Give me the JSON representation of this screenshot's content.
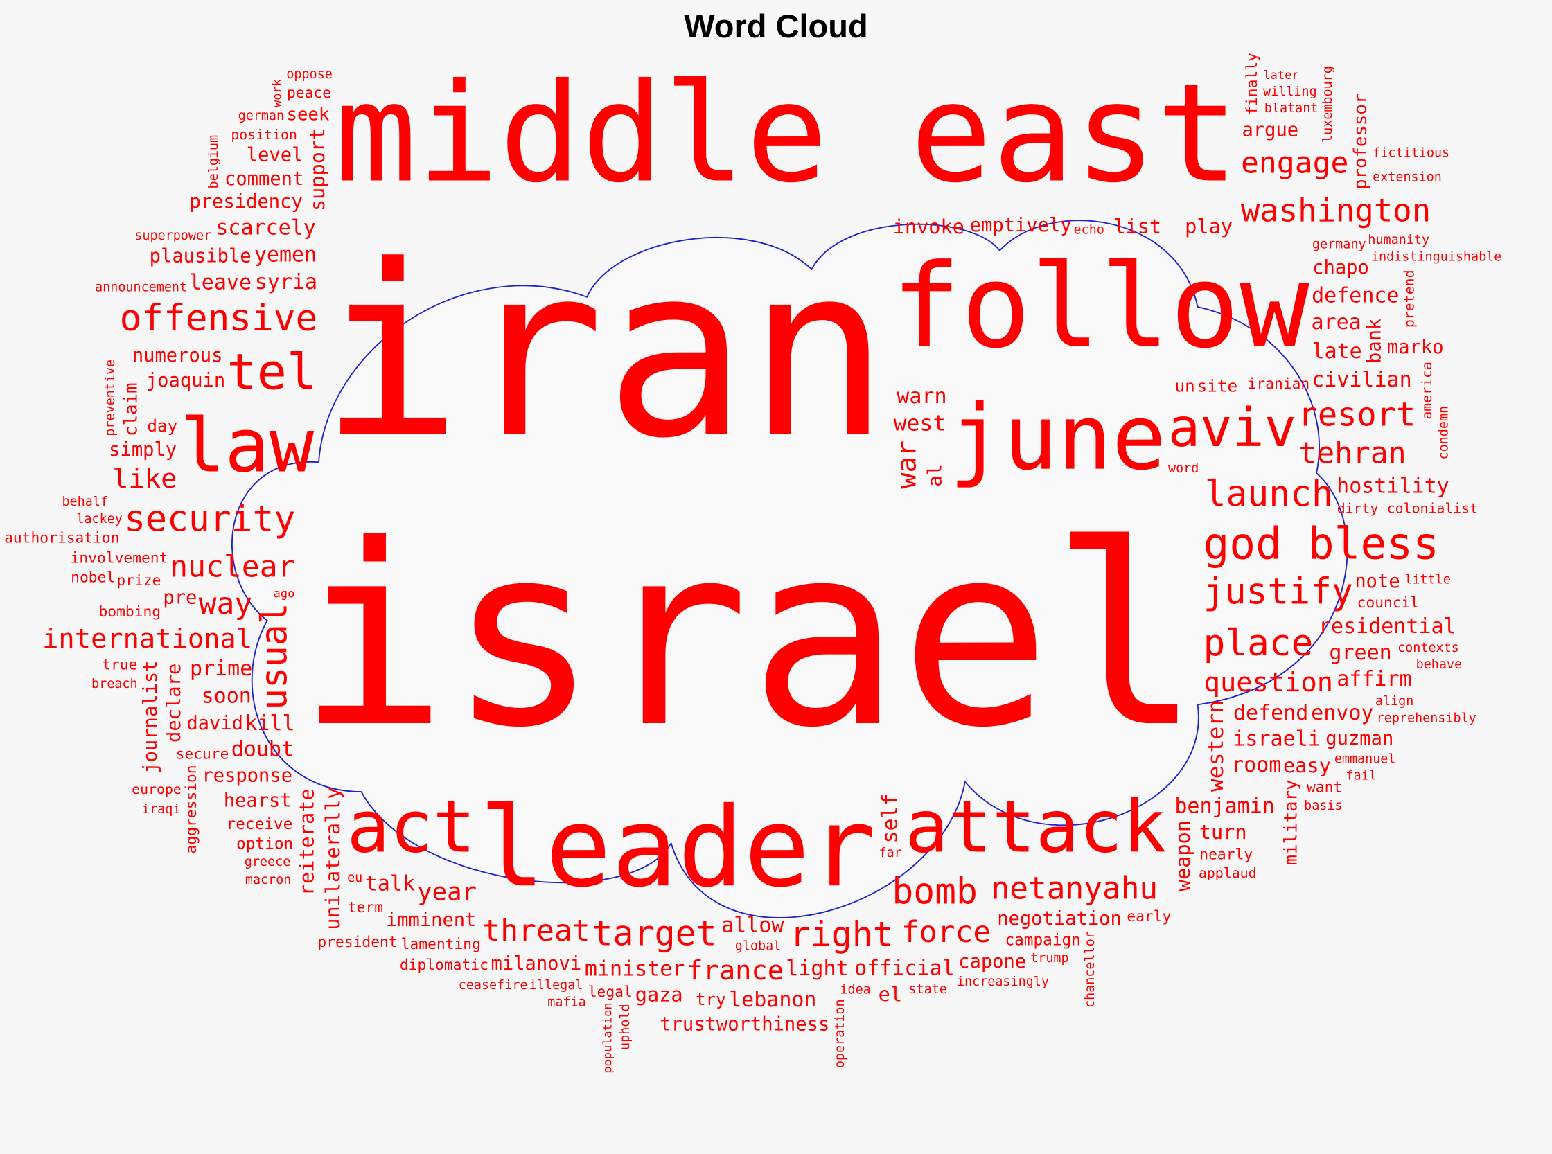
{
  "chart_data": {
    "type": "wordcloud",
    "title": "Word Cloud",
    "colors": {
      "words": "#ff0000",
      "outline": "#2222cc",
      "background": "#f7f7f7",
      "cloud_fill": "#f9f9f9"
    },
    "words": [
      {
        "text": "israel",
        "weight": 1.0
      },
      {
        "text": "iran",
        "weight": 0.945
      },
      {
        "text": "middle east",
        "weight": 0.545
      },
      {
        "text": "follow",
        "weight": 0.462
      },
      {
        "text": "leader",
        "weight": 0.439
      },
      {
        "text": "attack",
        "weight": 0.289
      },
      {
        "text": "june",
        "weight": 0.36
      },
      {
        "text": "law",
        "weight": 0.296
      },
      {
        "text": "act",
        "weight": 0.285
      },
      {
        "text": "aviv",
        "weight": 0.213
      },
      {
        "text": "tel",
        "weight": 0.198
      },
      {
        "text": "god bless",
        "weight": 0.174
      },
      {
        "text": "justify",
        "weight": 0.142
      },
      {
        "text": "place",
        "weight": 0.146
      },
      {
        "text": "launch",
        "weight": 0.142
      },
      {
        "text": "washington",
        "weight": 0.126
      },
      {
        "text": "engage",
        "weight": 0.119
      },
      {
        "text": "offensive",
        "weight": 0.146
      },
      {
        "text": "security",
        "weight": 0.142
      },
      {
        "text": "nuclear",
        "weight": 0.119
      },
      {
        "text": "international",
        "weight": 0.107
      },
      {
        "text": "target",
        "weight": 0.138
      },
      {
        "text": "threat",
        "weight": 0.119
      },
      {
        "text": "france",
        "weight": 0.107
      },
      {
        "text": "force",
        "weight": 0.119
      },
      {
        "text": "bomb",
        "weight": 0.142
      },
      {
        "text": "netanyahu",
        "weight": 0.123
      },
      {
        "text": "right",
        "weight": 0.138
      },
      {
        "text": "resort",
        "weight": 0.13
      },
      {
        "text": "question",
        "weight": 0.107
      },
      {
        "text": "tehran",
        "weight": 0.119
      },
      {
        "text": "way",
        "weight": 0.119
      },
      {
        "text": "like",
        "weight": 0.107
      },
      {
        "text": "year",
        "weight": 0.099
      },
      {
        "text": "usual",
        "weight": 0.142
      },
      {
        "text": "civilian",
        "weight": 0.083
      },
      {
        "text": "hostility",
        "weight": 0.083
      },
      {
        "text": "residential",
        "weight": 0.083
      },
      {
        "text": "defend",
        "weight": 0.083
      },
      {
        "text": "israeli",
        "weight": 0.083
      },
      {
        "text": "west",
        "weight": 0.087
      },
      {
        "text": "note",
        "weight": 0.075
      },
      {
        "text": "iranian",
        "weight": 0.059
      },
      {
        "text": "warn",
        "weight": 0.083
      },
      {
        "text": "little",
        "weight": 0.051
      },
      {
        "text": "contexts",
        "weight": 0.051
      },
      {
        "text": "council",
        "weight": 0.059
      },
      {
        "text": "dirty",
        "weight": 0.055
      },
      {
        "text": "colonialist",
        "weight": 0.055
      },
      {
        "text": "late",
        "weight": 0.083
      },
      {
        "text": "bank",
        "weight": 0.075
      },
      {
        "text": "condemn",
        "weight": 0.051
      },
      {
        "text": "marko",
        "weight": 0.075
      },
      {
        "text": "chapo",
        "weight": 0.075
      },
      {
        "text": "america",
        "weight": 0.055
      },
      {
        "text": "pretend",
        "weight": 0.055
      },
      {
        "text": "un",
        "weight": 0.067
      },
      {
        "text": "germany",
        "weight": 0.051
      },
      {
        "text": "indistinguishable",
        "weight": 0.051
      },
      {
        "text": "invoke",
        "weight": 0.079
      },
      {
        "text": "area",
        "weight": 0.083
      },
      {
        "text": "defence",
        "weight": 0.083
      },
      {
        "text": "blatant",
        "weight": 0.051
      },
      {
        "text": "emptively",
        "weight": 0.075
      },
      {
        "text": "professor",
        "weight": 0.071
      },
      {
        "text": "finally",
        "weight": 0.059
      },
      {
        "text": "luxembourg",
        "weight": 0.051
      },
      {
        "text": "list",
        "weight": 0.079
      },
      {
        "text": "willing",
        "weight": 0.051
      },
      {
        "text": "humanity",
        "weight": 0.051
      },
      {
        "text": "play",
        "weight": 0.079
      },
      {
        "text": "argue",
        "weight": 0.075
      },
      {
        "text": "echo",
        "weight": 0.051
      },
      {
        "text": "later",
        "weight": 0.047
      },
      {
        "text": "extension",
        "weight": 0.051
      },
      {
        "text": "fictitious",
        "weight": 0.051
      },
      {
        "text": "presidency",
        "weight": 0.075
      },
      {
        "text": "syria",
        "weight": 0.083
      },
      {
        "text": "oppose",
        "weight": 0.051
      },
      {
        "text": "german",
        "weight": 0.051
      },
      {
        "text": "comment",
        "weight": 0.075
      },
      {
        "text": "level",
        "weight": 0.075
      },
      {
        "text": "yemen",
        "weight": 0.083
      },
      {
        "text": "plausible",
        "weight": 0.075
      },
      {
        "text": "scarcely",
        "weight": 0.083
      },
      {
        "text": "joaquin",
        "weight": 0.075
      },
      {
        "text": "position",
        "weight": 0.055
      },
      {
        "text": "peace",
        "weight": 0.059
      },
      {
        "text": "leave",
        "weight": 0.083
      },
      {
        "text": "announcement",
        "weight": 0.051
      },
      {
        "text": "preventive",
        "weight": 0.051
      },
      {
        "text": "support",
        "weight": 0.079
      },
      {
        "text": "seek",
        "weight": 0.071
      },
      {
        "text": "belgium",
        "weight": 0.051
      },
      {
        "text": "work",
        "weight": 0.047
      },
      {
        "text": "claim",
        "weight": 0.071
      },
      {
        "text": "day",
        "weight": 0.067
      },
      {
        "text": "superpower",
        "weight": 0.051
      },
      {
        "text": "involvement",
        "weight": 0.059
      },
      {
        "text": "numerous",
        "weight": 0.075
      },
      {
        "text": "pre",
        "weight": 0.075
      },
      {
        "text": "simply",
        "weight": 0.075
      },
      {
        "text": "prime",
        "weight": 0.083
      },
      {
        "text": "prize",
        "weight": 0.059
      },
      {
        "text": "bombing",
        "weight": 0.059
      },
      {
        "text": "response",
        "weight": 0.075
      },
      {
        "text": "word",
        "weight": 0.051
      },
      {
        "text": "lamenting",
        "weight": 0.059
      },
      {
        "text": "allow",
        "weight": 0.083
      },
      {
        "text": "legal",
        "weight": 0.059
      },
      {
        "text": "lackey",
        "weight": 0.051
      },
      {
        "text": "behalf",
        "weight": 0.051
      },
      {
        "text": "authorisation",
        "weight": 0.059
      },
      {
        "text": "nobel",
        "weight": 0.059
      },
      {
        "text": "breach",
        "weight": 0.051
      },
      {
        "text": "kill",
        "weight": 0.083
      },
      {
        "text": "unilaterally",
        "weight": 0.079
      },
      {
        "text": "al",
        "weight": 0.075
      },
      {
        "text": "site",
        "weight": 0.067
      },
      {
        "text": "war",
        "weight": 0.107
      },
      {
        "text": "western",
        "weight": 0.087
      },
      {
        "text": "weapon",
        "weight": 0.079
      },
      {
        "text": "chancellor",
        "weight": 0.051
      },
      {
        "text": "self",
        "weight": 0.083
      },
      {
        "text": "true",
        "weight": 0.059
      },
      {
        "text": "secure",
        "weight": 0.059
      },
      {
        "text": "soon",
        "weight": 0.083
      },
      {
        "text": "doubt",
        "weight": 0.083
      },
      {
        "text": "david",
        "weight": 0.075
      },
      {
        "text": "europe",
        "weight": 0.055
      },
      {
        "text": "iraqi",
        "weight": 0.051
      },
      {
        "text": "hearst",
        "weight": 0.075
      },
      {
        "text": "greece",
        "weight": 0.051
      },
      {
        "text": "eu",
        "weight": 0.051
      },
      {
        "text": "declare",
        "weight": 0.075
      },
      {
        "text": "journalist",
        "weight": 0.075
      },
      {
        "text": "aggression",
        "weight": 0.059
      },
      {
        "text": "receive",
        "weight": 0.063
      },
      {
        "text": "macron",
        "weight": 0.051
      },
      {
        "text": "option",
        "weight": 0.063
      },
      {
        "text": "reiterate",
        "weight": 0.079
      },
      {
        "text": "ago",
        "weight": 0.047
      },
      {
        "text": "minister",
        "weight": 0.083
      },
      {
        "text": "milanovi",
        "weight": 0.075
      },
      {
        "text": "light",
        "weight": 0.083
      },
      {
        "text": "campaign",
        "weight": 0.063
      },
      {
        "text": "applaud",
        "weight": 0.055
      },
      {
        "text": "idea",
        "weight": 0.051
      },
      {
        "text": "diplomatic",
        "weight": 0.059
      },
      {
        "text": "try",
        "weight": 0.067
      },
      {
        "text": "operation",
        "weight": 0.051
      },
      {
        "text": "imminent",
        "weight": 0.075
      },
      {
        "text": "illegal",
        "weight": 0.051
      },
      {
        "text": "negotiation",
        "weight": 0.075
      },
      {
        "text": "talk",
        "weight": 0.083
      },
      {
        "text": "president",
        "weight": 0.059
      },
      {
        "text": "term",
        "weight": 0.059
      },
      {
        "text": "population",
        "weight": 0.047
      },
      {
        "text": "uphold",
        "weight": 0.051
      },
      {
        "text": "ceasefire",
        "weight": 0.051
      },
      {
        "text": "mafia",
        "weight": 0.051
      },
      {
        "text": "trustworthiness",
        "weight": 0.075
      },
      {
        "text": "gaza",
        "weight": 0.079
      },
      {
        "text": "global",
        "weight": 0.051
      },
      {
        "text": "lebanon",
        "weight": 0.083
      },
      {
        "text": "official",
        "weight": 0.083
      },
      {
        "text": "el",
        "weight": 0.079
      },
      {
        "text": "far",
        "weight": 0.051
      },
      {
        "text": "state",
        "weight": 0.051
      },
      {
        "text": "capone",
        "weight": 0.075
      },
      {
        "text": "increasingly",
        "weight": 0.051
      },
      {
        "text": "trump",
        "weight": 0.051
      },
      {
        "text": "early",
        "weight": 0.059
      },
      {
        "text": "turn",
        "weight": 0.079
      },
      {
        "text": "military",
        "weight": 0.071
      },
      {
        "text": "nearly",
        "weight": 0.059
      },
      {
        "text": "easy",
        "weight": 0.079
      },
      {
        "text": "emmanuel",
        "weight": 0.051
      },
      {
        "text": "want",
        "weight": 0.059
      },
      {
        "text": "align",
        "weight": 0.051
      },
      {
        "text": "green",
        "weight": 0.083
      },
      {
        "text": "reprehensibly",
        "weight": 0.051
      },
      {
        "text": "basis",
        "weight": 0.051
      },
      {
        "text": "guzman",
        "weight": 0.075
      },
      {
        "text": "affirm",
        "weight": 0.083
      },
      {
        "text": "behave",
        "weight": 0.051
      },
      {
        "text": "room",
        "weight": 0.083
      },
      {
        "text": "envoy",
        "weight": 0.083
      },
      {
        "text": "benjamin",
        "weight": 0.083
      },
      {
        "text": "fail",
        "weight": 0.051
      }
    ]
  }
}
